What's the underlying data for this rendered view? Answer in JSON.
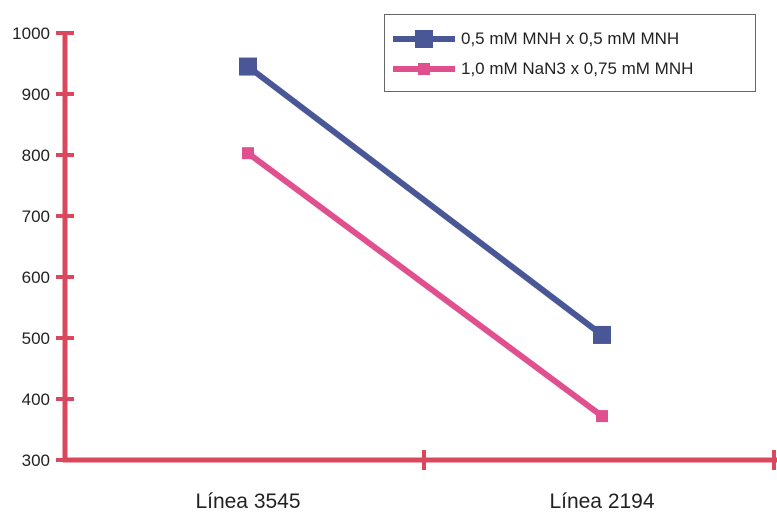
{
  "chart_data": {
    "type": "line",
    "title": "",
    "xlabel": "",
    "ylabel": "",
    "categories": [
      "Línea 3545",
      "Línea 2194"
    ],
    "ylim": [
      300,
      1000
    ],
    "yticks": [
      "300",
      "400",
      "500",
      "600",
      "700",
      "800",
      "900",
      "1000"
    ],
    "grid": false,
    "legend_position": "top-right",
    "axis_color": "#d9485c",
    "series": [
      {
        "name": "0,5 mM MNH x 0,5 mM MNH",
        "values": [
          945,
          505
        ],
        "color": "#4a5796",
        "marker": "square"
      },
      {
        "name": "1,0 mM NaN3 x 0,75 mM MNH",
        "values": [
          803,
          372
        ],
        "color": "#e0508f",
        "marker": "small-square"
      }
    ]
  }
}
